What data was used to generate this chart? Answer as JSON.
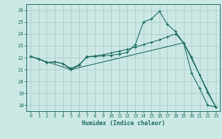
{
  "xlabel": "Humidex (Indice chaleur)",
  "bg_color": "#cce8e5",
  "grid_color": "#aaccca",
  "line_color": "#1a6b5e",
  "xlim": [
    -0.5,
    23.5
  ],
  "ylim": [
    17.5,
    26.5
  ],
  "yticks": [
    18,
    19,
    20,
    21,
    22,
    23,
    24,
    25,
    26
  ],
  "xticks": [
    0,
    1,
    2,
    3,
    4,
    5,
    6,
    7,
    8,
    9,
    10,
    11,
    12,
    13,
    14,
    15,
    16,
    17,
    18,
    19,
    20,
    21,
    22,
    23
  ],
  "line1_x": [
    0,
    1,
    2,
    3,
    4,
    5,
    6,
    7,
    8,
    9,
    10,
    11,
    12,
    13,
    14,
    15,
    16,
    17,
    18,
    19,
    20,
    21,
    22,
    23
  ],
  "line1_y": [
    22.1,
    21.9,
    21.6,
    21.65,
    21.5,
    21.0,
    21.35,
    22.1,
    22.1,
    22.15,
    22.2,
    22.3,
    22.45,
    23.1,
    25.0,
    25.25,
    25.9,
    24.8,
    24.2,
    23.25,
    20.7,
    19.4,
    18.0,
    17.85
  ],
  "line2_x": [
    0,
    1,
    2,
    3,
    4,
    5,
    6,
    7,
    8,
    9,
    10,
    11,
    12,
    13,
    14,
    15,
    16,
    17,
    18,
    19,
    20,
    21,
    22,
    23
  ],
  "line2_y": [
    22.1,
    21.9,
    21.6,
    21.65,
    21.5,
    21.1,
    21.4,
    22.05,
    22.15,
    22.25,
    22.4,
    22.55,
    22.7,
    22.9,
    23.1,
    23.3,
    23.5,
    23.75,
    24.0,
    23.25,
    22.05,
    20.55,
    19.05,
    17.85
  ],
  "line3_x": [
    0,
    5,
    19,
    23
  ],
  "line3_y": [
    22.1,
    21.0,
    23.25,
    17.85
  ]
}
